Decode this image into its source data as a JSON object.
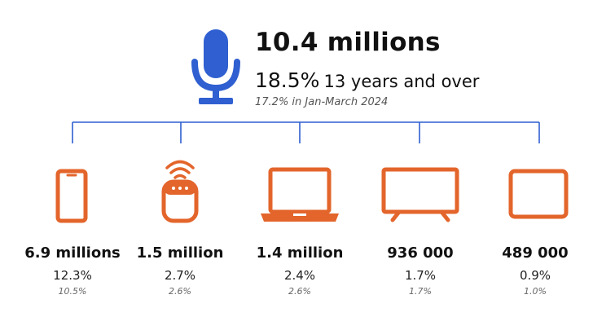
{
  "colors": {
    "mic": "#2f5fd0",
    "device": "#e3652b",
    "tree": "#2f5fd0"
  },
  "header": {
    "icon": "microphone-icon",
    "total": "10.4 millions",
    "share": "18.5%",
    "share_label": "13 years and over",
    "previous": "17.2% in Jan-March 2024"
  },
  "devices": [
    {
      "icon": "smartphone-icon",
      "value": "6.9 millions",
      "share": "12.3%",
      "previous": "10.5%"
    },
    {
      "icon": "smart-speaker-icon",
      "value": "1.5 million",
      "share": "2.7%",
      "previous": "2.6%"
    },
    {
      "icon": "laptop-icon",
      "value": "1.4 million",
      "share": "2.4%",
      "previous": "2.6%"
    },
    {
      "icon": "television-icon",
      "value": "936 000",
      "share": "1.7%",
      "previous": "1.7%"
    },
    {
      "icon": "tablet-icon",
      "value": "489 000",
      "share": "0.9%",
      "previous": "1.0%"
    }
  ]
}
